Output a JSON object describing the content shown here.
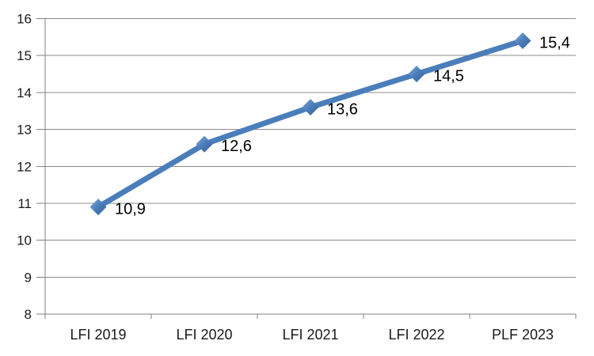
{
  "chart_data": {
    "type": "line",
    "title": "",
    "xlabel": "",
    "ylabel": "",
    "categories": [
      "LFI 2019",
      "LFI 2020",
      "LFI 2021",
      "LFI 2022",
      "PLF 2023"
    ],
    "values": [
      10.9,
      12.6,
      13.6,
      14.5,
      15.4
    ],
    "data_labels": [
      "10,9",
      "12,6",
      "13,6",
      "14,5",
      "15,4"
    ],
    "ylim": [
      8,
      16
    ],
    "ytick_step": 1,
    "ytick_labels": [
      "8",
      "9",
      "10",
      "11",
      "12",
      "13",
      "14",
      "15",
      "16"
    ],
    "grid": true,
    "legend_position": "none",
    "marker": "diamond",
    "colors": {
      "line": "#4A7EBB",
      "marker_light": "#7FA9DB",
      "marker_mid": "#4A7CB8",
      "marker_dark": "#35619B",
      "gridline": "#8C8C8C",
      "axis": "#808080",
      "text": "#1a1a1a",
      "data_label": "#000000",
      "background": "#FFFFFF"
    }
  }
}
